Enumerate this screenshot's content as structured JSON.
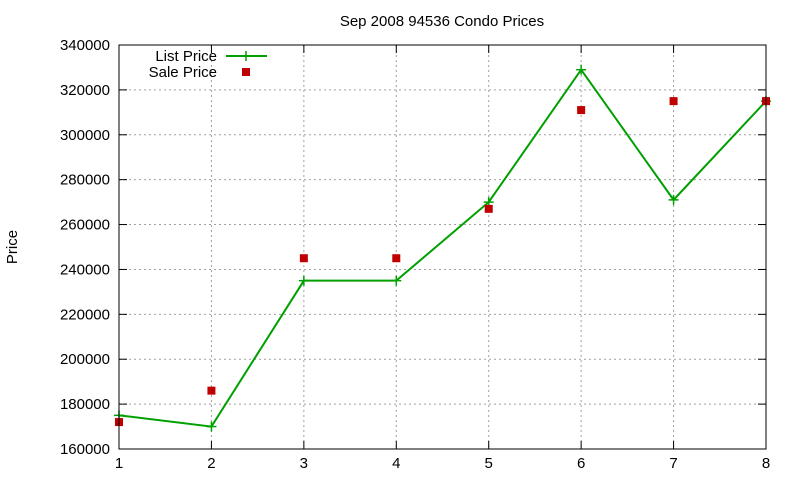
{
  "chart_data": {
    "type": "line",
    "title": "Sep 2008 94536 Condo Prices",
    "xlabel": "",
    "ylabel": "Price",
    "x": [
      1,
      2,
      3,
      4,
      5,
      6,
      7,
      8
    ],
    "xlim": [
      1,
      8
    ],
    "ylim": [
      160000,
      340000
    ],
    "xticks": [
      1,
      2,
      3,
      4,
      5,
      6,
      7,
      8
    ],
    "yticks": [
      160000,
      180000,
      200000,
      220000,
      240000,
      260000,
      280000,
      300000,
      320000,
      340000
    ],
    "grid": true,
    "legend_position": "top-left",
    "series": [
      {
        "name": "List Price",
        "style": "line-with-plus-markers",
        "color": "#00a000",
        "values": [
          175000,
          170000,
          235000,
          235000,
          270000,
          329000,
          271000,
          315000
        ]
      },
      {
        "name": "Sale Price",
        "style": "square-markers",
        "color": "#c00000",
        "values": [
          172000,
          186000,
          245000,
          245000,
          267000,
          311000,
          315000,
          315000
        ]
      }
    ]
  }
}
